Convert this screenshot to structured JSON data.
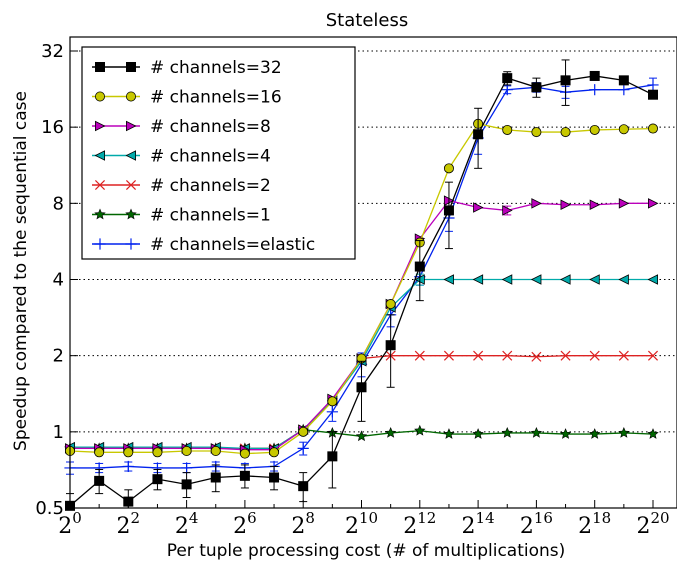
{
  "chart_data": {
    "type": "line",
    "title": "Stateless",
    "xlabel": "Per tuple processing cost (# of multiplications)",
    "ylabel": "Speedup compared to the sequential case",
    "x_scale": "log2",
    "y_scale": "log2",
    "xlim": [
      1,
      1048576
    ],
    "ylim": [
      0.5,
      36
    ],
    "x_exponents": [
      0,
      1,
      2,
      3,
      4,
      5,
      6,
      7,
      8,
      9,
      10,
      11,
      12,
      13,
      14,
      15,
      16,
      17,
      18,
      19,
      20
    ],
    "x_tick_labels": [
      {
        "base": "2",
        "exp": "0"
      },
      {
        "base": "2",
        "exp": "2"
      },
      {
        "base": "2",
        "exp": "4"
      },
      {
        "base": "2",
        "exp": "6"
      },
      {
        "base": "2",
        "exp": "8"
      },
      {
        "base": "2",
        "exp": "10"
      },
      {
        "base": "2",
        "exp": "12"
      },
      {
        "base": "2",
        "exp": "14"
      },
      {
        "base": "2",
        "exp": "16"
      },
      {
        "base": "2",
        "exp": "18"
      },
      {
        "base": "2",
        "exp": "20"
      }
    ],
    "y_ticks": [
      0.5,
      1,
      2,
      4,
      8,
      16,
      32
    ],
    "y_tick_labels": [
      "0.5",
      "1",
      "2",
      "4",
      "8",
      "16",
      "32"
    ],
    "grid": "horizontal dotted",
    "legend_position": "top-left",
    "series": [
      {
        "name": "# channels=32",
        "color": "#000000",
        "marker": "square",
        "values": [
          0.51,
          0.64,
          0.53,
          0.65,
          0.62,
          0.66,
          0.67,
          0.66,
          0.61,
          0.8,
          1.5,
          2.2,
          4.5,
          7.5,
          15,
          25,
          23,
          24.5,
          25.5,
          24.5,
          21.5
        ],
        "err": [
          0.06,
          0.07,
          0.06,
          0.06,
          0.07,
          0.08,
          0.07,
          0.07,
          0.08,
          0.2,
          0.4,
          0.7,
          1.2,
          2.2,
          4,
          1.5,
          2,
          5,
          0,
          0,
          0
        ]
      },
      {
        "name": "# channels=16",
        "color": "#c8c800",
        "marker": "circle",
        "values": [
          0.84,
          0.83,
          0.83,
          0.83,
          0.84,
          0.84,
          0.82,
          0.83,
          1.0,
          1.32,
          1.95,
          3.2,
          5.6,
          11,
          16.5,
          15.6,
          15.3,
          15.3,
          15.6,
          15.7,
          15.8
        ],
        "err": [
          0,
          0,
          0,
          0,
          0,
          0,
          0,
          0,
          0,
          0,
          0,
          0,
          0,
          0,
          0,
          0,
          0,
          0,
          0,
          0,
          0
        ]
      },
      {
        "name": "# channels=8",
        "color": "#bb00bb",
        "marker": "triangle-right",
        "values": [
          0.86,
          0.86,
          0.86,
          0.86,
          0.86,
          0.86,
          0.85,
          0.85,
          1.02,
          1.35,
          1.95,
          3.2,
          5.8,
          8.2,
          7.7,
          7.5,
          8.0,
          7.9,
          7.9,
          8.0,
          8.0
        ],
        "err": [
          0,
          0,
          0,
          0,
          0,
          0,
          0,
          0,
          0,
          0,
          0,
          0,
          0,
          0,
          0,
          0.3,
          0,
          0,
          0,
          0,
          0
        ]
      },
      {
        "name": "# channels=4",
        "color": "#00aaaa",
        "marker": "triangle-left",
        "values": [
          0.87,
          0.87,
          0.87,
          0.87,
          0.87,
          0.87,
          0.86,
          0.86,
          1.02,
          1.33,
          1.9,
          3.1,
          4.0,
          4.0,
          4.0,
          4.0,
          4.0,
          4.0,
          4.0,
          4.0,
          4.0
        ],
        "err": [
          0,
          0,
          0,
          0,
          0,
          0,
          0,
          0,
          0,
          0,
          0,
          0,
          0.2,
          0,
          0,
          0,
          0,
          0,
          0,
          0,
          0
        ]
      },
      {
        "name": "# channels=2",
        "color": "#dd2222",
        "marker": "x",
        "values": [
          0.86,
          0.86,
          0.86,
          0.86,
          0.86,
          0.86,
          0.86,
          0.86,
          1.02,
          1.33,
          1.95,
          2.0,
          2.0,
          2.0,
          2.0,
          2.0,
          1.98,
          2.0,
          2.0,
          2.0,
          2.0
        ],
        "err": [
          0,
          0,
          0,
          0,
          0,
          0,
          0,
          0,
          0,
          0,
          0,
          0,
          0,
          0,
          0,
          0,
          0,
          0,
          0,
          0,
          0
        ]
      },
      {
        "name": "# channels=1",
        "color": "#006600",
        "marker": "star",
        "values": [
          0.86,
          0.86,
          0.86,
          0.86,
          0.86,
          0.86,
          0.86,
          0.86,
          1.02,
          0.99,
          0.96,
          0.99,
          1.01,
          0.98,
          0.98,
          0.99,
          0.99,
          0.98,
          0.98,
          0.99,
          0.98
        ],
        "err": [
          0,
          0,
          0,
          0,
          0,
          0,
          0,
          0,
          0,
          0,
          0,
          0,
          0,
          0,
          0,
          0,
          0,
          0,
          0,
          0,
          0
        ]
      },
      {
        "name": "# channels=elastic",
        "color": "#0022ee",
        "marker": "plus",
        "values": [
          0.72,
          0.72,
          0.73,
          0.72,
          0.72,
          0.73,
          0.72,
          0.73,
          0.86,
          1.2,
          1.85,
          2.9,
          4.1,
          7.0,
          14.5,
          22.5,
          23,
          22,
          22.5,
          22.5,
          23.5
        ],
        "err": [
          0.04,
          0.03,
          0.03,
          0.03,
          0.03,
          0.03,
          0.03,
          0.03,
          0.05,
          0.1,
          0.2,
          0.3,
          0.3,
          0.8,
          2,
          0.8,
          1,
          1.2,
          0,
          0,
          1.5
        ]
      }
    ]
  }
}
